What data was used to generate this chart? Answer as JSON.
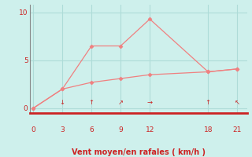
{
  "line1_x": [
    0,
    3,
    6,
    9,
    12,
    18,
    21
  ],
  "line1_y": [
    0.0,
    2.0,
    6.5,
    6.5,
    9.3,
    3.8,
    4.1
  ],
  "line2_x": [
    0,
    3,
    6,
    9,
    12,
    18,
    21
  ],
  "line2_y": [
    0.0,
    2.0,
    2.7,
    3.1,
    3.5,
    3.8,
    4.1
  ],
  "line_color": "#f08080",
  "bg_color": "#cef0ec",
  "grid_color": "#aedcd8",
  "axis_color": "#cc2222",
  "tick_color": "#cc2222",
  "label_color": "#cc2222",
  "xlabel": "Vent moyen/en rafales ( km/h )",
  "xticks": [
    0,
    3,
    6,
    9,
    12,
    18,
    21
  ],
  "yticks": [
    0,
    5,
    10
  ],
  "xlim": [
    -0.3,
    22
  ],
  "ylim": [
    -0.5,
    10.8
  ],
  "arrow_ticks": {
    "3": "↓",
    "6": "↑",
    "9": "↗",
    "12": "→",
    "18": "↑",
    "21": "↖"
  }
}
